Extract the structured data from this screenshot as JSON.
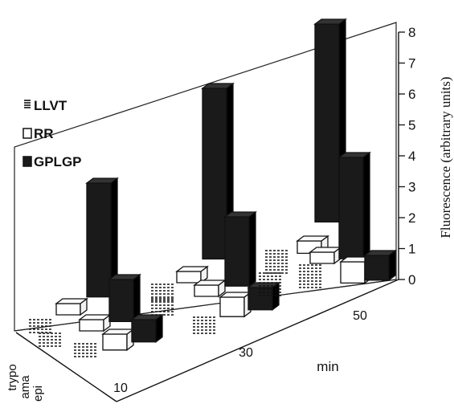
{
  "chart_data": {
    "type": "bar",
    "subtype": "3d-bar",
    "z_axis": {
      "label": "Fluorescence (arbitrary units)",
      "ticks": [
        "0",
        "1",
        "2",
        "3",
        "4",
        "5",
        "6",
        "7",
        "8"
      ],
      "range": [
        0,
        8
      ]
    },
    "time_axis": {
      "label": "min",
      "ticks": [
        "10",
        "30",
        "50"
      ]
    },
    "group_axis": {
      "ticks": [
        "trypo",
        "ama",
        "epi"
      ]
    },
    "legend": {
      "placement": "left",
      "entries": [
        {
          "label": "LLVT",
          "pattern": "hatched"
        },
        {
          "label": "RR",
          "pattern": "white"
        },
        {
          "label": "GPLGP",
          "pattern": "black"
        }
      ]
    },
    "colors": {
      "black_bar": "#1a1a1a",
      "white_bar": "#ffffff",
      "outline": "#111111"
    },
    "series": [
      {
        "name": "LLVT",
        "time": "10",
        "values": {
          "trypo": 0.3,
          "ama": 0.3,
          "epi": 0.3
        }
      },
      {
        "name": "RR",
        "time": "10",
        "values": {
          "trypo": 0.5,
          "ama": 0.4,
          "epi": 0.9
        }
      },
      {
        "name": "GPLGP",
        "time": "10",
        "values": {
          "trypo": 4.6,
          "ama": 1.7,
          "epi": 0.9
        }
      },
      {
        "name": "LLVT",
        "time": "30",
        "values": {
          "trypo": 0.5,
          "ama": 0.5,
          "epi": 0.5
        }
      },
      {
        "name": "RR",
        "time": "30",
        "values": {
          "trypo": 0.6,
          "ama": 0.5,
          "epi": 1.1
        }
      },
      {
        "name": "GPLGP",
        "time": "30",
        "values": {
          "trypo": 6.9,
          "ama": 2.8,
          "epi": 0.9
        }
      },
      {
        "name": "LLVT",
        "time": "50",
        "values": {
          "trypo": 0.7,
          "ama": 0.7,
          "epi": 0.7
        }
      },
      {
        "name": "RR",
        "time": "50",
        "values": {
          "trypo": 0.7,
          "ama": 0.6,
          "epi": 1.2
        }
      },
      {
        "name": "GPLGP",
        "time": "50",
        "values": {
          "trypo": 8.0,
          "ama": 4.1,
          "epi": 1.0
        }
      }
    ]
  }
}
